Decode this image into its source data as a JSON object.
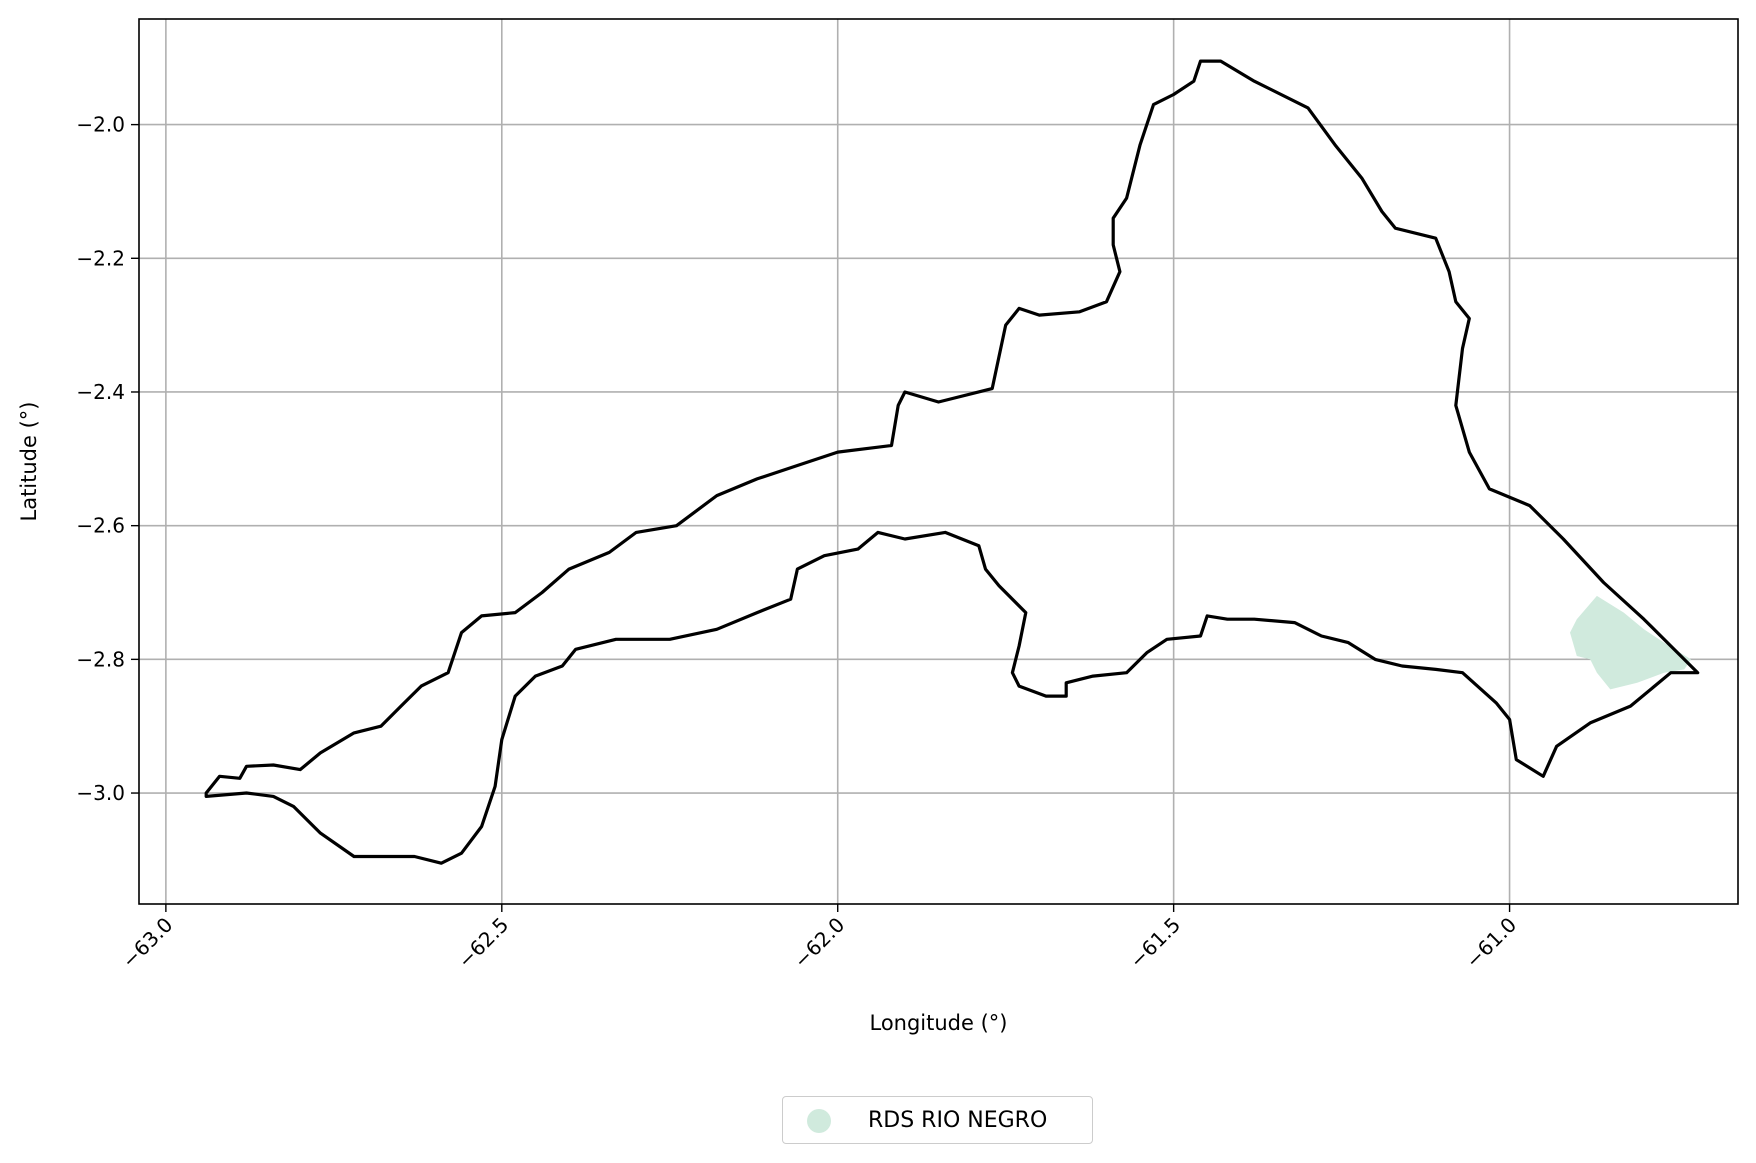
{
  "chart_data": {
    "type": "map",
    "xlabel": "Longitude (°)",
    "ylabel": "Latitude (°)",
    "xlim": [
      -63.04,
      -60.66
    ],
    "ylim": [
      -3.166,
      -1.842
    ],
    "xticks": [
      -63.0,
      -62.5,
      -62.0,
      -61.5,
      -61.0
    ],
    "xtick_labels": [
      "−63.0",
      "−62.5",
      "−62.0",
      "−61.5",
      "−61.0"
    ],
    "yticks": [
      -2.0,
      -2.2,
      -2.4,
      -2.6,
      -2.8,
      -3.0
    ],
    "ytick_labels": [
      "−2.0",
      "−2.2",
      "−2.4",
      "−2.6",
      "−2.8",
      "−3.0"
    ],
    "grid": true,
    "xtick_rotation_deg": 45,
    "legend_placement": "bottom-center",
    "outline_color": "#000000",
    "boundary": [
      [
        -62.94,
        -3.0
      ],
      [
        -62.92,
        -2.975
      ],
      [
        -62.89,
        -2.978
      ],
      [
        -62.88,
        -2.96
      ],
      [
        -62.84,
        -2.958
      ],
      [
        -62.8,
        -2.965
      ],
      [
        -62.77,
        -2.94
      ],
      [
        -62.72,
        -2.91
      ],
      [
        -62.68,
        -2.9
      ],
      [
        -62.65,
        -2.87
      ],
      [
        -62.62,
        -2.84
      ],
      [
        -62.58,
        -2.82
      ],
      [
        -62.56,
        -2.76
      ],
      [
        -62.53,
        -2.735
      ],
      [
        -62.48,
        -2.73
      ],
      [
        -62.44,
        -2.7
      ],
      [
        -62.4,
        -2.665
      ],
      [
        -62.34,
        -2.64
      ],
      [
        -62.3,
        -2.61
      ],
      [
        -62.24,
        -2.6
      ],
      [
        -62.18,
        -2.555
      ],
      [
        -62.12,
        -2.53
      ],
      [
        -62.06,
        -2.51
      ],
      [
        -62.0,
        -2.49
      ],
      [
        -61.92,
        -2.48
      ],
      [
        -61.91,
        -2.42
      ],
      [
        -61.9,
        -2.4
      ],
      [
        -61.85,
        -2.415
      ],
      [
        -61.77,
        -2.395
      ],
      [
        -61.75,
        -2.3
      ],
      [
        -61.73,
        -2.275
      ],
      [
        -61.7,
        -2.285
      ],
      [
        -61.64,
        -2.28
      ],
      [
        -61.6,
        -2.265
      ],
      [
        -61.58,
        -2.22
      ],
      [
        -61.59,
        -2.18
      ],
      [
        -61.59,
        -2.14
      ],
      [
        -61.57,
        -2.11
      ],
      [
        -61.55,
        -2.03
      ],
      [
        -61.53,
        -1.97
      ],
      [
        -61.5,
        -1.955
      ],
      [
        -61.47,
        -1.935
      ],
      [
        -61.46,
        -1.905
      ],
      [
        -61.43,
        -1.905
      ],
      [
        -61.38,
        -1.935
      ],
      [
        -61.3,
        -1.975
      ],
      [
        -61.26,
        -2.03
      ],
      [
        -61.22,
        -2.08
      ],
      [
        -61.19,
        -2.13
      ],
      [
        -61.17,
        -2.155
      ],
      [
        -61.11,
        -2.17
      ],
      [
        -61.09,
        -2.22
      ],
      [
        -61.08,
        -2.265
      ],
      [
        -61.06,
        -2.29
      ],
      [
        -61.07,
        -2.335
      ],
      [
        -61.08,
        -2.42
      ],
      [
        -61.06,
        -2.49
      ],
      [
        -61.03,
        -2.545
      ],
      [
        -60.97,
        -2.57
      ],
      [
        -60.92,
        -2.62
      ],
      [
        -60.86,
        -2.685
      ],
      [
        -60.8,
        -2.74
      ],
      [
        -60.76,
        -2.78
      ],
      [
        -60.72,
        -2.82
      ],
      [
        -60.76,
        -2.82
      ],
      [
        -60.82,
        -2.87
      ],
      [
        -60.88,
        -2.895
      ],
      [
        -60.93,
        -2.93
      ],
      [
        -60.95,
        -2.975
      ],
      [
        -60.99,
        -2.95
      ],
      [
        -61.0,
        -2.89
      ],
      [
        -61.02,
        -2.865
      ],
      [
        -61.07,
        -2.82
      ],
      [
        -61.11,
        -2.815
      ],
      [
        -61.16,
        -2.81
      ],
      [
        -61.2,
        -2.8
      ],
      [
        -61.24,
        -2.775
      ],
      [
        -61.28,
        -2.765
      ],
      [
        -61.32,
        -2.745
      ],
      [
        -61.38,
        -2.74
      ],
      [
        -61.42,
        -2.74
      ],
      [
        -61.45,
        -2.735
      ],
      [
        -61.46,
        -2.765
      ],
      [
        -61.51,
        -2.77
      ],
      [
        -61.54,
        -2.79
      ],
      [
        -61.57,
        -2.82
      ],
      [
        -61.62,
        -2.825
      ],
      [
        -61.66,
        -2.835
      ],
      [
        -61.66,
        -2.855
      ],
      [
        -61.69,
        -2.855
      ],
      [
        -61.73,
        -2.84
      ],
      [
        -61.74,
        -2.82
      ],
      [
        -61.73,
        -2.78
      ],
      [
        -61.72,
        -2.73
      ],
      [
        -61.76,
        -2.69
      ],
      [
        -61.78,
        -2.665
      ],
      [
        -61.79,
        -2.63
      ],
      [
        -61.84,
        -2.61
      ],
      [
        -61.9,
        -2.62
      ],
      [
        -61.94,
        -2.61
      ],
      [
        -61.97,
        -2.635
      ],
      [
        -62.02,
        -2.645
      ],
      [
        -62.06,
        -2.665
      ],
      [
        -62.07,
        -2.71
      ],
      [
        -62.12,
        -2.73
      ],
      [
        -62.18,
        -2.755
      ],
      [
        -62.25,
        -2.77
      ],
      [
        -62.33,
        -2.77
      ],
      [
        -62.39,
        -2.785
      ],
      [
        -62.41,
        -2.81
      ],
      [
        -62.45,
        -2.825
      ],
      [
        -62.48,
        -2.855
      ],
      [
        -62.5,
        -2.92
      ],
      [
        -62.51,
        -2.99
      ],
      [
        -62.53,
        -3.05
      ],
      [
        -62.56,
        -3.09
      ],
      [
        -62.59,
        -3.105
      ],
      [
        -62.63,
        -3.095
      ],
      [
        -62.72,
        -3.095
      ],
      [
        -62.77,
        -3.06
      ],
      [
        -62.81,
        -3.02
      ],
      [
        -62.84,
        -3.005
      ],
      [
        -62.88,
        -3.0
      ],
      [
        -62.94,
        -3.005
      ],
      [
        -62.94,
        -3.0
      ]
    ],
    "series": [
      {
        "name": "RDS RIO NEGRO",
        "color": "#d0eadd",
        "polygon": [
          [
            -60.87,
            -2.705
          ],
          [
            -60.83,
            -2.73
          ],
          [
            -60.8,
            -2.755
          ],
          [
            -60.77,
            -2.775
          ],
          [
            -60.73,
            -2.8
          ],
          [
            -60.74,
            -2.815
          ],
          [
            -60.77,
            -2.82
          ],
          [
            -60.81,
            -2.835
          ],
          [
            -60.85,
            -2.845
          ],
          [
            -60.87,
            -2.82
          ],
          [
            -60.88,
            -2.8
          ],
          [
            -60.9,
            -2.795
          ],
          [
            -60.91,
            -2.76
          ],
          [
            -60.9,
            -2.74
          ]
        ]
      }
    ]
  }
}
